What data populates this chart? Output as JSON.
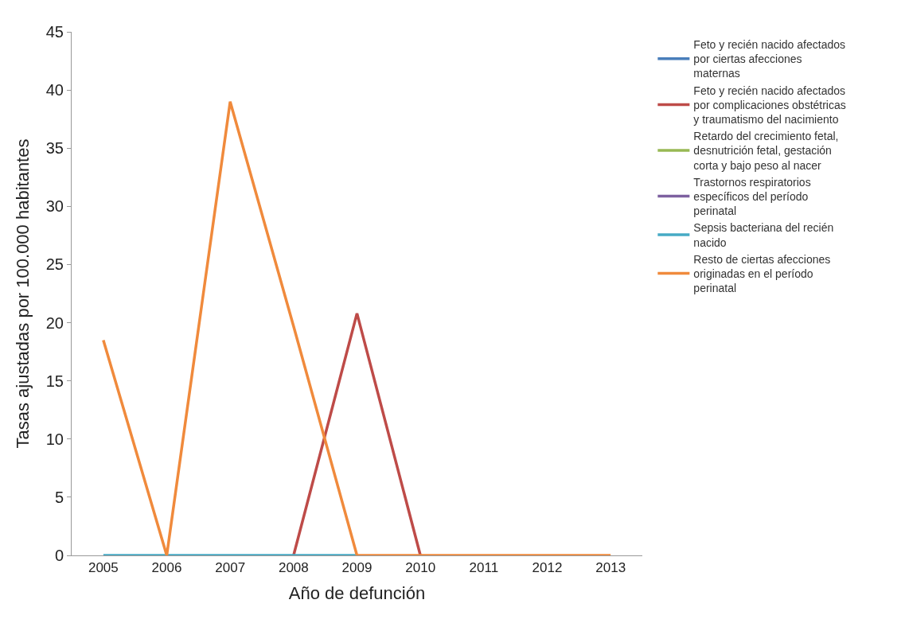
{
  "chart_data": {
    "type": "line",
    "xlabel": "Año de defunción",
    "ylabel": "Tasas ajustadas por 100.000 habitantes",
    "categories": [
      "2005",
      "2006",
      "2007",
      "2008",
      "2009",
      "2010",
      "2011",
      "2012",
      "2013"
    ],
    "ylim": [
      0,
      45
    ],
    "yticks": [
      0,
      5,
      10,
      15,
      20,
      25,
      30,
      35,
      40,
      45
    ],
    "legend": "right",
    "marker": "none",
    "line_style": "solid",
    "series": [
      {
        "name": "Feto y recién nacido afectados por ciertas afecciones maternas",
        "color": "#4a7ebb",
        "values": [
          null,
          null,
          null,
          null,
          null,
          null,
          null,
          null,
          null
        ]
      },
      {
        "name": "Feto y recién nacido afectados por complicaciones obstétricas y traumatismo del nacimiento",
        "color": "#be4b48",
        "values": [
          null,
          null,
          null,
          0,
          20.8,
          0,
          null,
          null,
          null
        ]
      },
      {
        "name": "Retardo del crecimiento fetal, desnutrición fetal, gestación corta y bajo peso al nacer",
        "color": "#98b954",
        "values": [
          null,
          null,
          null,
          null,
          null,
          null,
          null,
          null,
          null
        ]
      },
      {
        "name": "Trastornos respiratorios específicos del período perinatal",
        "color": "#7d60a0",
        "values": [
          null,
          null,
          null,
          null,
          null,
          null,
          null,
          null,
          null
        ]
      },
      {
        "name": "Sepsis bacteriana del recién nacido",
        "color": "#46aac5",
        "values": [
          0,
          0,
          0,
          0,
          0,
          null,
          null,
          null,
          null
        ]
      },
      {
        "name": "Resto de ciertas afecciones originadas en el período perinatal",
        "color": "#f08a3c",
        "values": [
          18.5,
          0,
          39,
          19.7,
          0,
          0,
          0,
          0,
          0
        ]
      }
    ]
  }
}
